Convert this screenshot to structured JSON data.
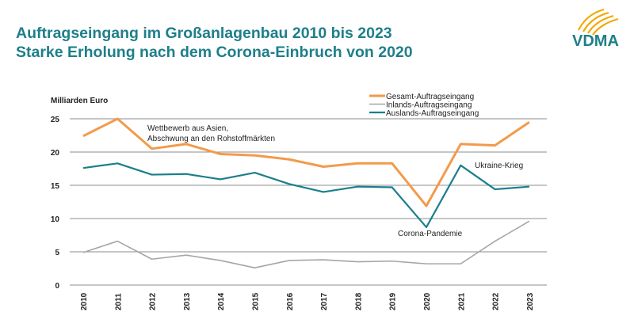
{
  "title_line1": "Auftragseingang im Großanlagenbau 2010 bis 2023",
  "title_line2": "Starke Erholung nach dem Corona-Einbruch von 2020",
  "logo": "VDMA",
  "chart_data": {
    "type": "line",
    "ylabel": "Milliarden Euro",
    "ylim": [
      0,
      25
    ],
    "yticks": [
      0,
      5,
      10,
      15,
      20,
      25
    ],
    "grid": true,
    "legend_placement": "top-right",
    "categories": [
      "2010",
      "2011",
      "2012",
      "2013",
      "2014",
      "2015",
      "2016",
      "2017",
      "2018",
      "2019",
      "2020",
      "2021",
      "2022",
      "2023"
    ],
    "series": [
      {
        "name": "Gesamt-Auftragseingang",
        "color": "#f39a4b",
        "values": [
          22.4,
          25.0,
          20.5,
          21.2,
          19.7,
          19.5,
          18.9,
          17.8,
          18.3,
          18.3,
          11.9,
          21.2,
          21.0,
          24.5
        ]
      },
      {
        "name": "Inlands-Auftragseingang",
        "color": "#a6a6a6",
        "values": [
          4.9,
          6.6,
          3.9,
          4.5,
          3.7,
          2.6,
          3.7,
          3.8,
          3.5,
          3.6,
          3.2,
          3.2,
          6.6,
          9.6
        ]
      },
      {
        "name": "Auslands-Auftragseingang",
        "color": "#1a7f8c",
        "values": [
          17.6,
          18.3,
          16.6,
          16.7,
          15.9,
          16.9,
          15.2,
          14.0,
          14.8,
          14.7,
          8.7,
          18.0,
          14.4,
          14.8
        ]
      }
    ],
    "annotations": [
      {
        "lines": [
          "Wettbewerb aus Asien,",
          "Abschwung an den Rohstoffmärkten"
        ]
      },
      {
        "lines": [
          "Ukraine-Krieg"
        ]
      },
      {
        "lines": [
          "Corona-Pandemie"
        ]
      }
    ]
  }
}
